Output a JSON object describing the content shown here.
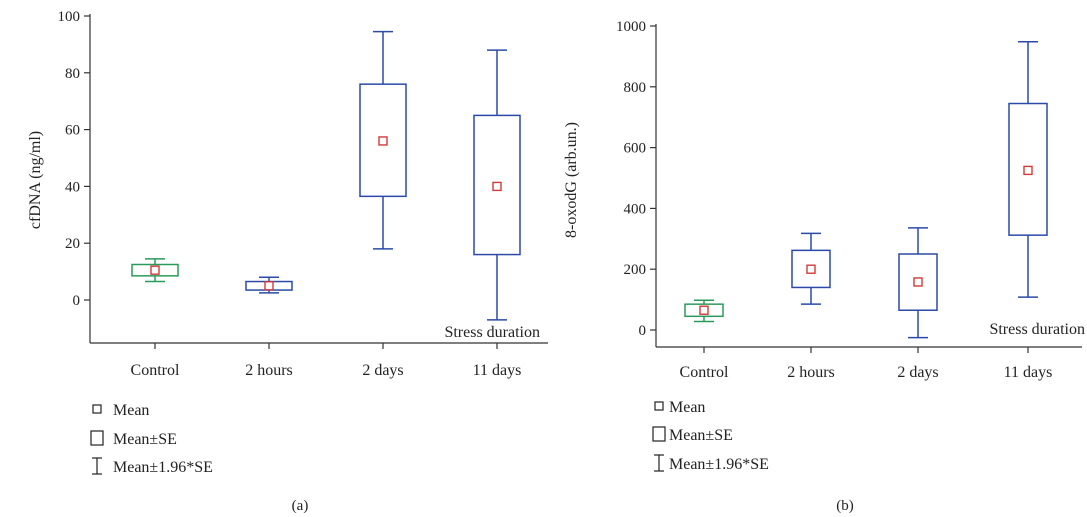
{
  "chart_data": [
    {
      "panel_label": "(a)",
      "type": "boxplot",
      "ylabel": "cfDNA (ng/ml)",
      "ylim": [
        -15,
        100
      ],
      "yticks": [
        0,
        20,
        40,
        60,
        80,
        100
      ],
      "categories": [
        "Control",
        "2 hours",
        "2 days",
        "11 days"
      ],
      "annotation": "Stress duration",
      "series": [
        {
          "category": "Control",
          "mean": 10.5,
          "se_low": 8.5,
          "se_high": 12.5,
          "ci_low": 6.5,
          "ci_high": 14.5,
          "color": "#2a9a5a"
        },
        {
          "category": "2 hours",
          "mean": 5,
          "se_low": 3.5,
          "se_high": 6.5,
          "ci_low": 2.5,
          "ci_high": 8,
          "color": "#2b4aa8"
        },
        {
          "category": "2 days",
          "mean": 56,
          "se_low": 36.5,
          "se_high": 76,
          "ci_low": 18,
          "ci_high": 94.5,
          "color": "#2b4aa8"
        },
        {
          "category": "11 days",
          "mean": 40,
          "se_low": 16,
          "se_high": 65,
          "ci_low": -7,
          "ci_high": 88,
          "color": "#2b4aa8"
        }
      ],
      "legend": [
        "Mean",
        "Mean±SE",
        "Mean±1.96*SE"
      ]
    },
    {
      "panel_label": "(b)",
      "type": "boxplot",
      "ylabel": "8-oxodG (arb.un.)",
      "ylim": [
        -50,
        1000
      ],
      "yticks": [
        0,
        200,
        400,
        600,
        800,
        1000
      ],
      "categories": [
        "Control",
        "2 hours",
        "2 days",
        "11 days"
      ],
      "annotation": "Stress duration",
      "series": [
        {
          "category": "Control",
          "mean": 65,
          "se_low": 45,
          "se_high": 85,
          "ci_low": 28,
          "ci_high": 98,
          "color": "#2a9a5a"
        },
        {
          "category": "2 hours",
          "mean": 200,
          "se_low": 140,
          "se_high": 262,
          "ci_low": 85,
          "ci_high": 318,
          "color": "#2b4aa8"
        },
        {
          "category": "2 days",
          "mean": 158,
          "se_low": 65,
          "se_high": 250,
          "ci_low": -25,
          "ci_high": 336,
          "color": "#2b4aa8"
        },
        {
          "category": "11 days",
          "mean": 525,
          "se_low": 312,
          "se_high": 745,
          "ci_low": 108,
          "ci_high": 948,
          "color": "#2b4aa8"
        }
      ],
      "legend": [
        "Mean",
        "Mean±SE",
        "Mean±1.96*SE"
      ]
    }
  ],
  "mean_marker_color": "#d33a3a",
  "axis_color": "#333333"
}
